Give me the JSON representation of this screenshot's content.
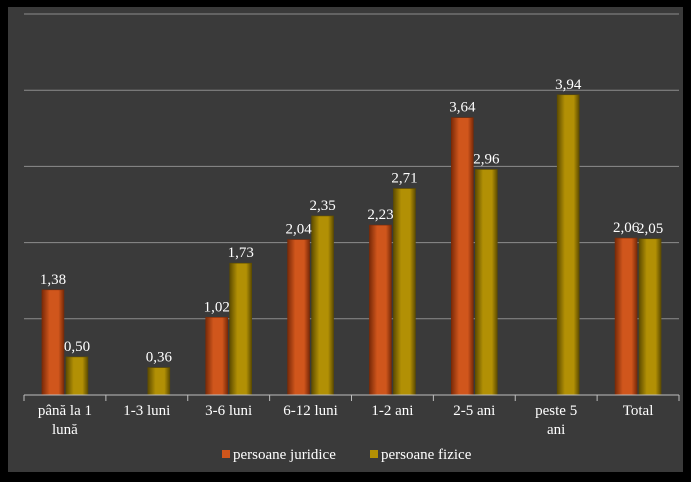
{
  "chart_data": {
    "type": "bar",
    "categories": [
      "până la 1 lună",
      "1-3 luni",
      "3-6 luni",
      "6-12 luni",
      "1-2 ani",
      "2-5 ani",
      "peste 5 ani",
      "Total"
    ],
    "category_lines": [
      [
        "până la 1",
        "lună"
      ],
      [
        "1-3 luni"
      ],
      [
        "3-6 luni"
      ],
      [
        "6-12 luni"
      ],
      [
        "1-2 ani"
      ],
      [
        "2-5 ani"
      ],
      [
        "peste 5",
        "ani"
      ],
      [
        "Total"
      ]
    ],
    "series": [
      {
        "name": "persoane juridice",
        "values": [
          1.38,
          null,
          1.02,
          2.04,
          2.23,
          3.64,
          null,
          2.06
        ],
        "labels": [
          "1,38",
          "",
          "1,02",
          "2,04",
          "2,23",
          "3,64",
          "",
          "2,06"
        ]
      },
      {
        "name": "persoane fizice",
        "values": [
          0.5,
          0.36,
          1.73,
          2.35,
          2.71,
          2.96,
          3.94,
          2.05
        ],
        "labels": [
          "0,50",
          "0,36",
          "1,73",
          "2,35",
          "2,71",
          "2,96",
          "3,94",
          "2,05"
        ]
      }
    ],
    "title": "",
    "xlabel": "",
    "ylabel": "",
    "ylim": [
      0,
      5
    ],
    "grid": true,
    "legend": "bottom",
    "colors": {
      "background": "#000000",
      "plot_area": "#3a3a3a",
      "gridline": "#8c8c8c",
      "series_1": "#d0561c",
      "series_1_dark": "#7a2a08",
      "series_2": "#b29005",
      "series_2_dark": "#5e4c00",
      "text": "#ffffff"
    }
  }
}
